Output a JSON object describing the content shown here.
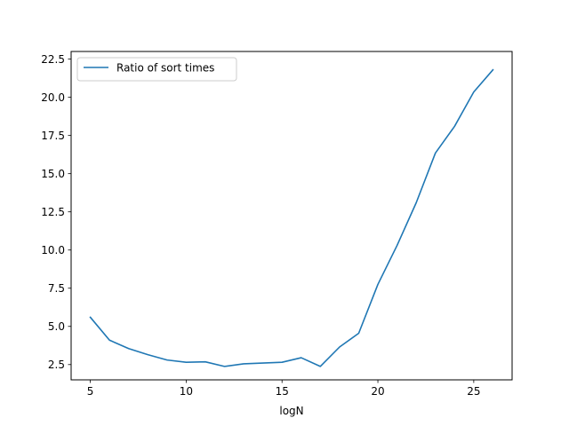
{
  "chart_data": {
    "type": "line",
    "title": "",
    "xlabel": "logN",
    "ylabel": "",
    "xlim": [
      4,
      27
    ],
    "ylim": [
      1.5,
      23
    ],
    "xticks": [
      5,
      10,
      15,
      20,
      25
    ],
    "yticks": [
      2.5,
      5.0,
      7.5,
      10.0,
      12.5,
      15.0,
      17.5,
      20.0,
      22.5
    ],
    "ytick_labels": [
      "2.5",
      "5.0",
      "7.5",
      "10.0",
      "12.5",
      "15.0",
      "17.5",
      "20.0",
      "22.5"
    ],
    "grid": false,
    "legend_position": "top-left",
    "series": [
      {
        "name": "Ratio of sort times",
        "color": "#1f77b4",
        "x": [
          5,
          6,
          7,
          8,
          9,
          10,
          11,
          12,
          13,
          14,
          15,
          16,
          17,
          18,
          19,
          20,
          21,
          22,
          23,
          24,
          25,
          26
        ],
        "y": [
          5.6,
          4.1,
          3.55,
          3.15,
          2.8,
          2.65,
          2.68,
          2.38,
          2.55,
          2.6,
          2.65,
          2.95,
          2.38,
          3.65,
          4.55,
          7.75,
          10.3,
          13.1,
          16.35,
          18.1,
          20.35,
          21.8
        ]
      }
    ]
  }
}
